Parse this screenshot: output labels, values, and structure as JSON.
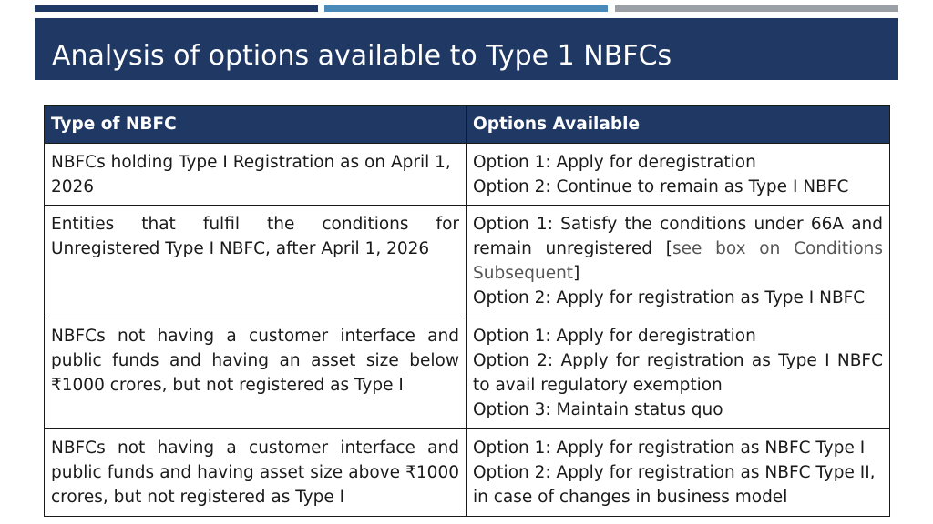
{
  "title": "Analysis of options available to Type 1 NBFCs",
  "colors": {
    "navy": "#1f3864",
    "blue": "#4a8ab8",
    "grey": "#9aa0a6"
  },
  "table": {
    "headers": [
      "Type of NBFC",
      "Options Available"
    ],
    "rows": [
      {
        "type": "NBFCs holding Type I Registration as on April 1, 2026",
        "options": [
          "Option 1: Apply for deregistration",
          "Option 2: Continue to remain as Type I NBFC"
        ]
      },
      {
        "type": "Entities that fulfil the conditions for Unregistered Type I NBFC, after April 1, 2026",
        "options": [
          "Option 1: Satisfy the conditions under 66A and remain unregistered [",
          "see box on Conditions Subsequent",
          "]",
          "Option 2: Apply for registration as Type I NBFC"
        ]
      },
      {
        "type": "NBFCs not having a customer interface and public funds and having an asset size below ₹1000 crores, but not registered as Type I",
        "options": [
          "Option 1: Apply for deregistration",
          "Option 2: Apply for registration as Type I NBFC to avail regulatory exemption",
          "Option 3: Maintain status quo"
        ]
      },
      {
        "type": "NBFCs not having a customer interface and public funds and having asset size above ₹1000 crores, but not registered as Type I",
        "options": [
          "Option 1: Apply for registration as NBFC Type I",
          "Option 2: Apply for registration as NBFC Type II, in case of changes in business model"
        ]
      }
    ]
  }
}
